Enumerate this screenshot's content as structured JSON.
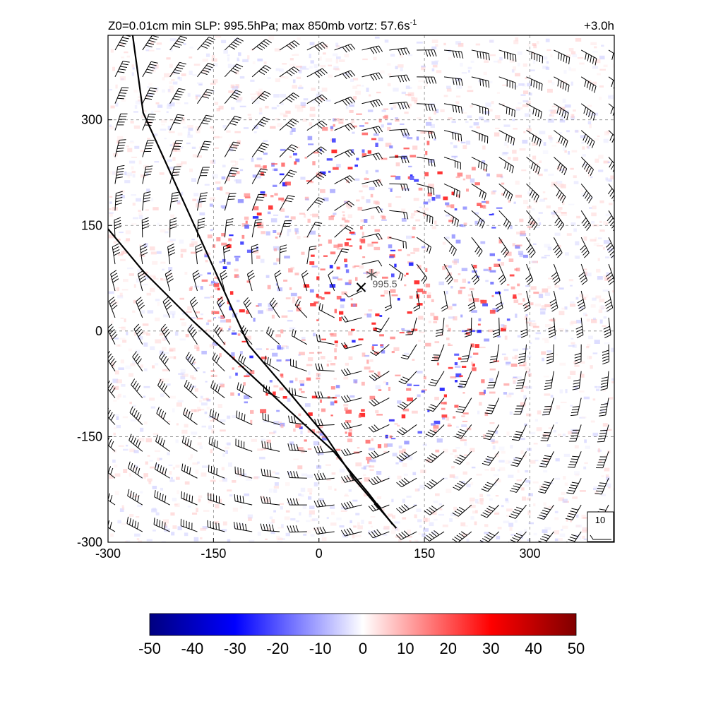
{
  "chart_data": {
    "type": "heatmap",
    "title_left": "Z0=0.01cm  min SLP: 995.5hPa; max 850mb vortz:  57.6s",
    "title_left_sup": "-1",
    "title_right": "+3.0h",
    "xlim": [
      -300,
      420
    ],
    "ylim": [
      -300,
      420
    ],
    "x_ticks": [
      -300,
      -150,
      0,
      150,
      300
    ],
    "y_ticks": [
      -300,
      -150,
      0,
      150,
      300
    ],
    "x_tick_labels": [
      "-300",
      "-150",
      "0",
      "150",
      "300"
    ],
    "y_tick_labels": [
      "-300",
      "-150",
      "0",
      "150",
      "300"
    ],
    "grid": true,
    "grid_style": "dashed",
    "colorbar": {
      "min": -50,
      "max": 50,
      "tick_labels": [
        "-50",
        "-40",
        "-30",
        "-20",
        "-10",
        "0",
        "10",
        "20",
        "30",
        "40",
        "50"
      ],
      "colors": [
        "#000080",
        "#0000ff",
        "#ffffff",
        "#ff0000",
        "#800000"
      ]
    },
    "storm_center": {
      "x": 60,
      "y": 62,
      "marker": "x"
    },
    "vortex_max": {
      "x": 75,
      "y": 80,
      "marker": "asterisk"
    },
    "slp_label": "995.5",
    "coastlines": [
      [
        [
          -265,
          420
        ],
        [
          -250,
          310
        ],
        [
          -200,
          200
        ],
        [
          -150,
          90
        ],
        [
          -100,
          -20
        ],
        [
          -40,
          -90
        ],
        [
          10,
          -150
        ],
        [
          50,
          -210
        ],
        [
          110,
          -280
        ]
      ],
      [
        [
          -300,
          145
        ],
        [
          -250,
          85
        ],
        [
          -180,
          15
        ],
        [
          -110,
          -50
        ],
        [
          -40,
          -115
        ],
        [
          20,
          -170
        ],
        [
          70,
          -230
        ],
        [
          105,
          -275
        ]
      ]
    ],
    "wind_reference": {
      "label": "10"
    },
    "vortex_field": {
      "vmin": -50,
      "vmax": 50,
      "colormap": "blue-white-red"
    },
    "wind_field": {
      "center": [
        60,
        62
      ],
      "structure": "cyclonic barbs"
    }
  }
}
